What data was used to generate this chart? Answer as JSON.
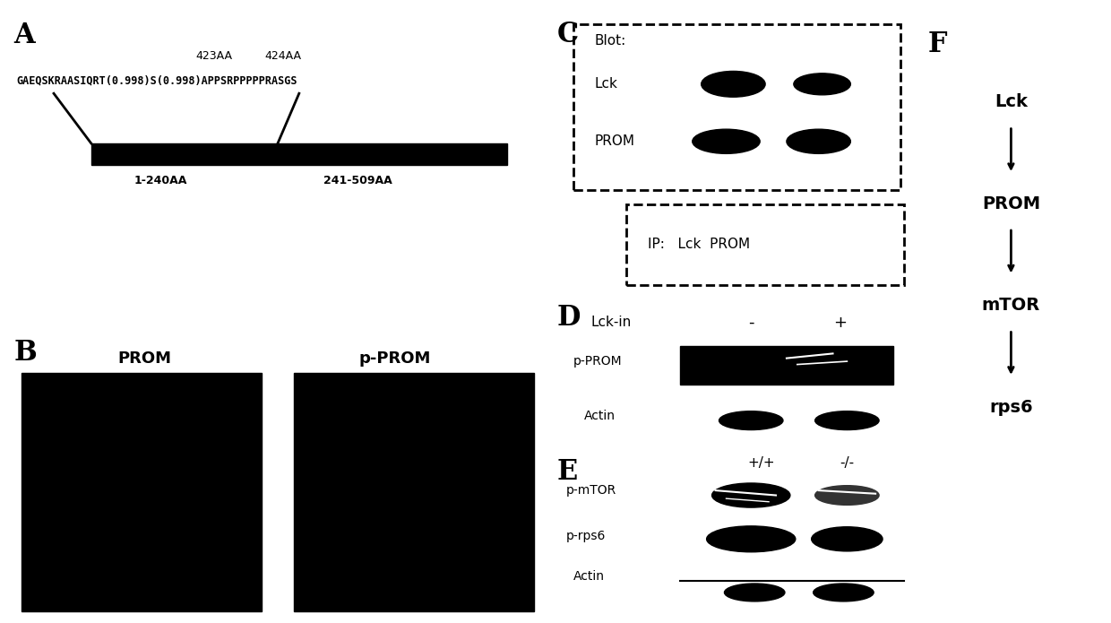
{
  "panel_A": {
    "label": "A",
    "aa_labels": [
      "423AA",
      "424AA"
    ],
    "sequence": "GAEQSKRAASIQRT(0.998)S(0.998)APPSRPPPPPRASGS",
    "bar_label_left": "1-240AA",
    "bar_label_right": "241-509AA"
  },
  "panel_B": {
    "label": "B",
    "title_left": "PROM",
    "title_right": "p-PROM"
  },
  "panel_C": {
    "label": "C",
    "blot_labels": [
      "Blot:",
      "Lck",
      "PROM"
    ],
    "ip_label": "IP:   Lck  PROM"
  },
  "panel_D": {
    "label": "D",
    "condition_label": "Lck-in",
    "conditions": [
      "-",
      "+"
    ],
    "row_labels": [
      "p-PROM",
      "Actin"
    ]
  },
  "panel_E": {
    "label": "E",
    "conditions": [
      "+/+",
      "-/-"
    ],
    "row_labels": [
      "p-mTOR",
      "p-rps6",
      "Actin"
    ]
  },
  "panel_F": {
    "label": "F",
    "pathway": [
      "Lck",
      "PROM",
      "mTOR",
      "rps6"
    ]
  },
  "bg_color": "#ffffff",
  "fg_color": "#000000"
}
